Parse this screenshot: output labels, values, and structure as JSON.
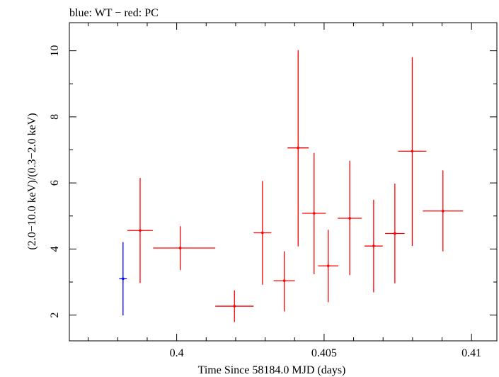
{
  "chart_data": {
    "type": "scatter",
    "title": "blue: WT − red: PC",
    "xlabel": "Time Since 58184.0 MJD (days)",
    "ylabel": "(2.0−10.0 keV)/(0.3−2.0 keV)",
    "xlim": [
      0.39636,
      0.41086
    ],
    "ylim": [
      1.22,
      10.85
    ],
    "x_ticks": [
      0.4,
      0.405,
      0.41
    ],
    "x_tick_labels": [
      "0.4",
      "0.405",
      "0.41"
    ],
    "y_ticks": [
      2,
      4,
      6,
      8,
      10
    ],
    "y_tick_labels": [
      "2",
      "4",
      "6",
      "8",
      "10"
    ],
    "grid": false,
    "series": [
      {
        "name": "WT",
        "color": "#0000ff",
        "points": [
          {
            "x": 0.39818,
            "xlo": 0.39805,
            "xhi": 0.39831,
            "y": 3.1,
            "ylo": 1.99,
            "yhi": 4.21
          }
        ]
      },
      {
        "name": "PC",
        "color": "#ff0000",
        "points": [
          {
            "x": 0.39876,
            "xlo": 0.39833,
            "xhi": 0.39919,
            "y": 4.56,
            "ylo": 2.97,
            "yhi": 6.15
          },
          {
            "x": 0.40012,
            "xlo": 0.3992,
            "xhi": 0.40131,
            "y": 4.03,
            "ylo": 3.36,
            "yhi": 4.69
          },
          {
            "x": 0.40196,
            "xlo": 0.40131,
            "xhi": 0.40261,
            "y": 2.27,
            "ylo": 1.79,
            "yhi": 2.75
          },
          {
            "x": 0.40291,
            "xlo": 0.40261,
            "xhi": 0.40321,
            "y": 4.49,
            "ylo": 2.92,
            "yhi": 6.06
          },
          {
            "x": 0.40365,
            "xlo": 0.40329,
            "xhi": 0.40401,
            "y": 3.04,
            "ylo": 2.11,
            "yhi": 3.93
          },
          {
            "x": 0.40412,
            "xlo": 0.40376,
            "xhi": 0.40448,
            "y": 7.06,
            "ylo": 4.08,
            "yhi": 10.02
          },
          {
            "x": 0.40466,
            "xlo": 0.40426,
            "xhi": 0.40506,
            "y": 5.08,
            "ylo": 3.24,
            "yhi": 6.91
          },
          {
            "x": 0.40514,
            "xlo": 0.4048,
            "xhi": 0.40548,
            "y": 3.49,
            "ylo": 2.39,
            "yhi": 4.58
          },
          {
            "x": 0.40587,
            "xlo": 0.40546,
            "xhi": 0.40628,
            "y": 4.93,
            "ylo": 3.21,
            "yhi": 6.67
          },
          {
            "x": 0.40668,
            "xlo": 0.40637,
            "xhi": 0.40699,
            "y": 4.09,
            "ylo": 2.69,
            "yhi": 5.49
          },
          {
            "x": 0.4074,
            "xlo": 0.40707,
            "xhi": 0.40773,
            "y": 4.47,
            "ylo": 2.96,
            "yhi": 5.98
          },
          {
            "x": 0.40799,
            "xlo": 0.40751,
            "xhi": 0.40847,
            "y": 6.96,
            "ylo": 4.09,
            "yhi": 9.81
          },
          {
            "x": 0.40903,
            "xlo": 0.40835,
            "xhi": 0.40971,
            "y": 5.15,
            "ylo": 3.93,
            "yhi": 6.38
          }
        ]
      }
    ]
  }
}
